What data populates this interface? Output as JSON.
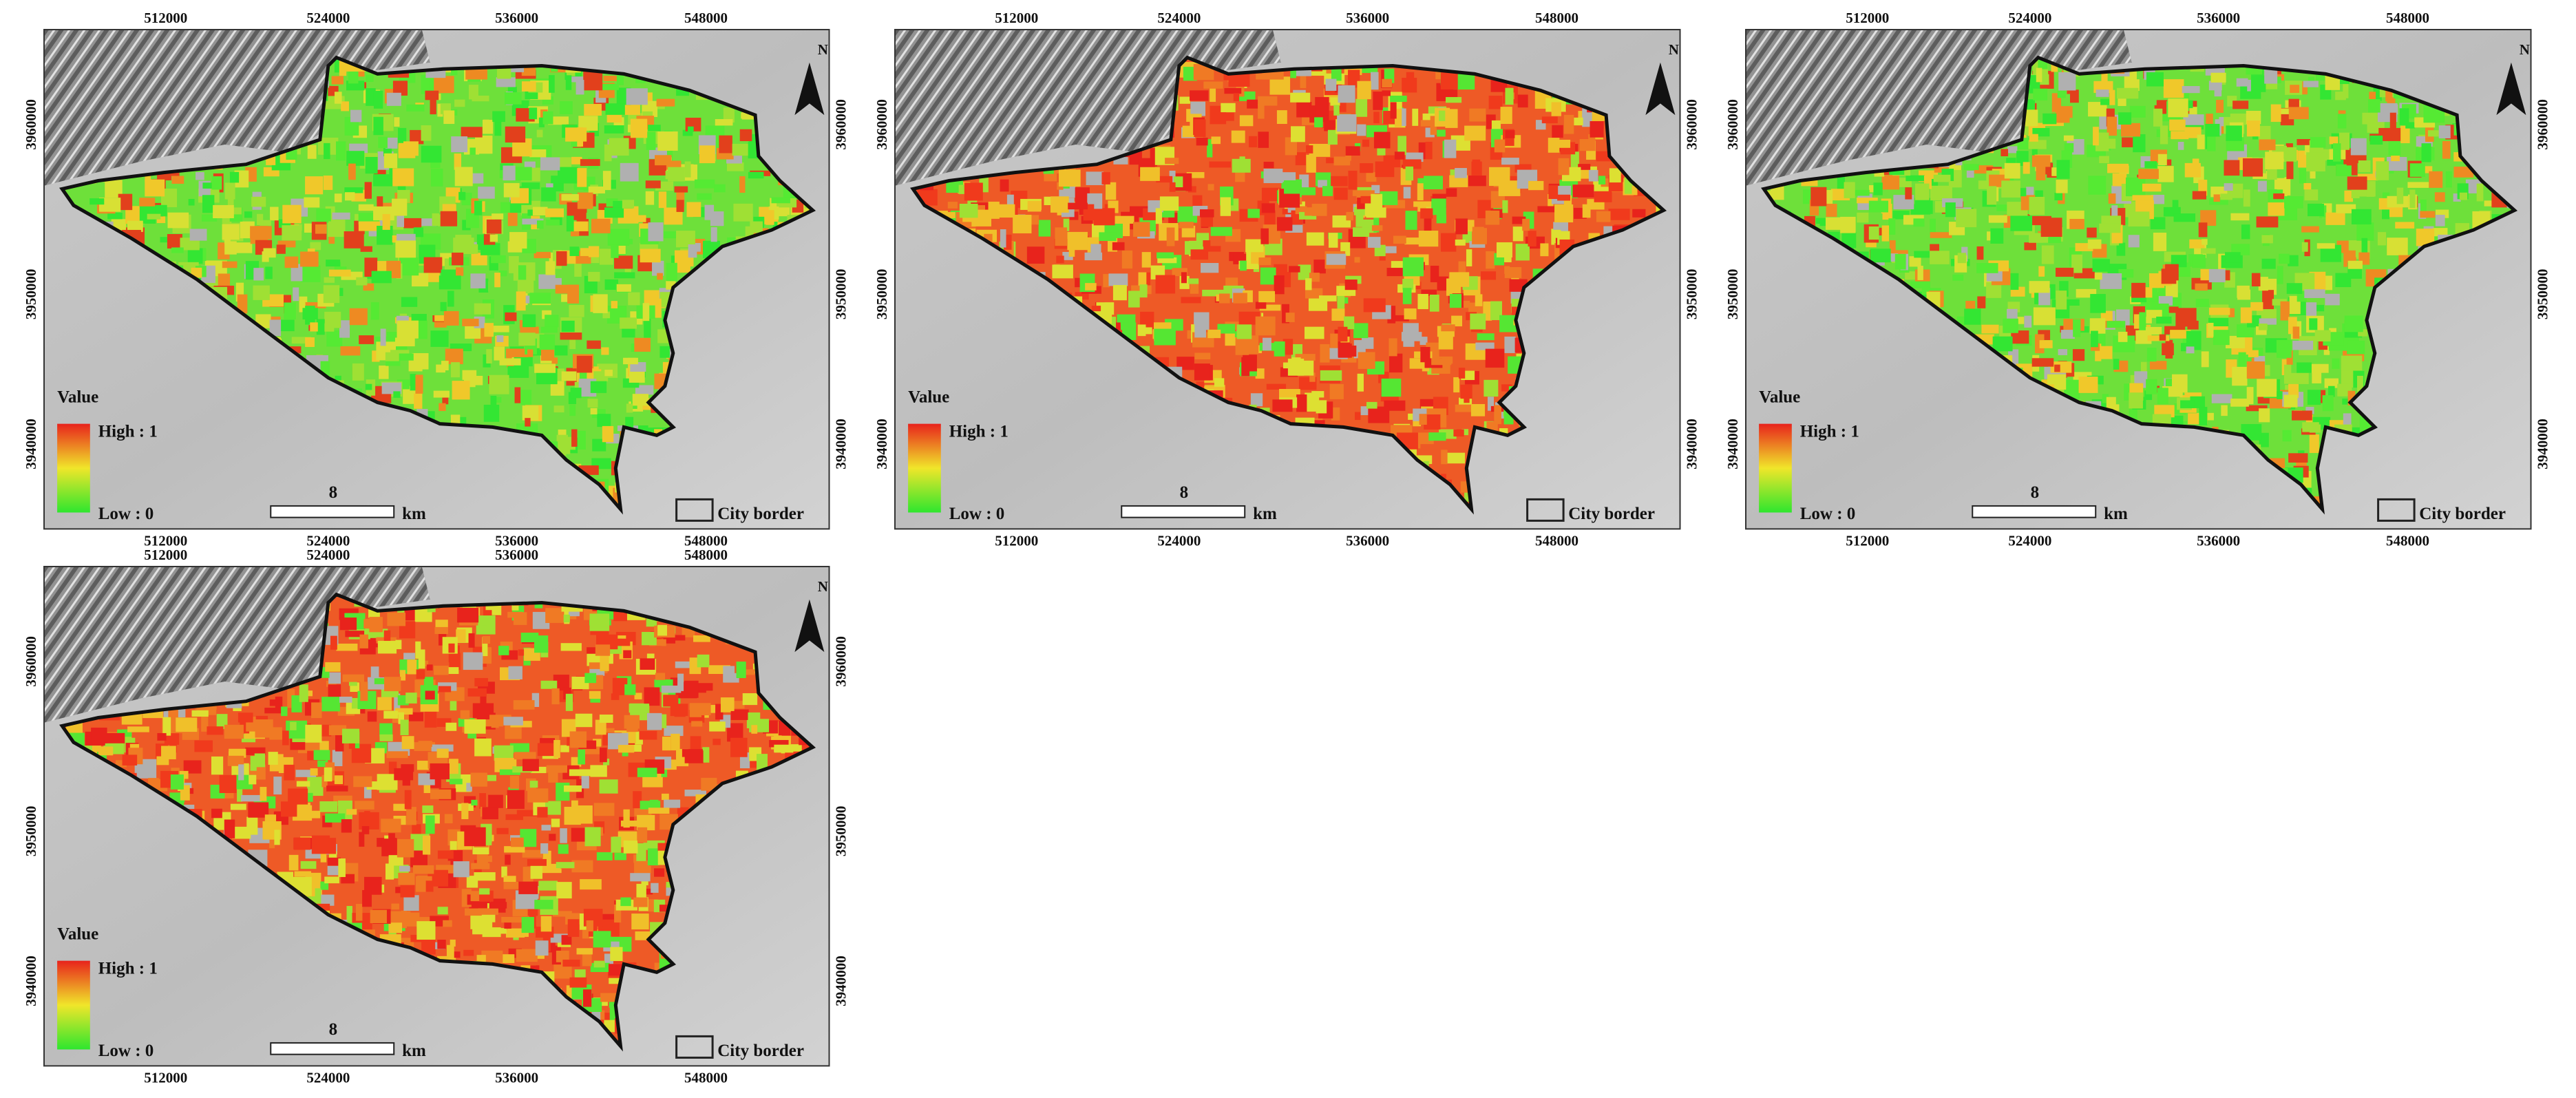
{
  "x_ticks": [
    "512000",
    "524000",
    "536000",
    "548000"
  ],
  "y_ticks": [
    "3960000",
    "3950000",
    "3940000"
  ],
  "legend": {
    "title": "Value",
    "high": "High : 1",
    "low": "Low : 0"
  },
  "scale_bar": {
    "distance": "8",
    "unit": "km"
  },
  "border_legend": "City border",
  "north": "N"
}
